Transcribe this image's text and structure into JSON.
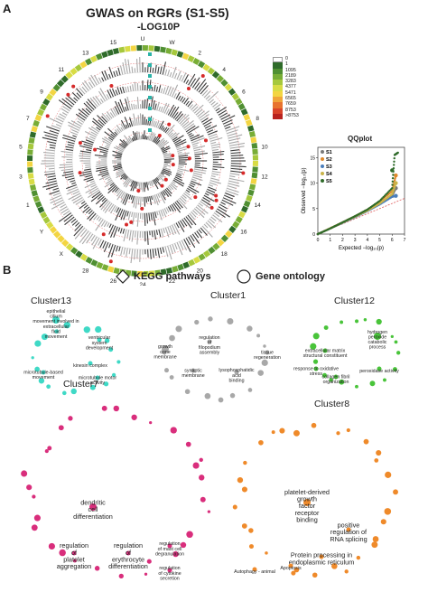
{
  "panelA": {
    "letter": "A",
    "title": "GWAS on RGRs (S1-S5)",
    "subtitle": "-LOG10P",
    "colorbar": {
      "labels": [
        "0",
        "1",
        "1095",
        "2189",
        "3283",
        "4377",
        "5471",
        "6565",
        "7659",
        "8753",
        ">8753"
      ],
      "colors": [
        "#ffffff",
        "#2f6b2a",
        "#4f8f32",
        "#78ad36",
        "#a6c83c",
        "#d8dc45",
        "#f3d542",
        "#f0a53a",
        "#e8732f",
        "#d9442a",
        "#b8231f"
      ]
    },
    "ideogram_labels": [
      "U",
      "W",
      "2",
      "4",
      "6",
      "8",
      "10",
      "12",
      "14",
      "16",
      "18",
      "20",
      "22",
      "24",
      "26",
      "28",
      "X",
      "Y",
      "1",
      "3",
      "5",
      "7",
      "9",
      "11",
      "13",
      "15"
    ],
    "qqplot": {
      "title": "QQplot",
      "xlabel": "Expected −log₁₀(p)",
      "ylabel": "Observed −log₁₀(p)",
      "legend": [
        {
          "name": "S1",
          "color": "#7a7a7a"
        },
        {
          "name": "S2",
          "color": "#e08a2c"
        },
        {
          "name": "S3",
          "color": "#4a7ebb"
        },
        {
          "name": "S4",
          "color": "#c9b44a"
        },
        {
          "name": "S5",
          "color": "#2f6b2a"
        }
      ]
    }
  },
  "chart_data": {
    "type": "scatter",
    "title": "QQplot",
    "xlabel": "Expected −log₁₀(p)",
    "ylabel": "Observed −log₁₀(p)",
    "xlim": [
      0,
      7
    ],
    "ylim": [
      0,
      17
    ],
    "xticks": [
      0,
      1,
      2,
      3,
      4,
      5,
      6,
      7
    ],
    "yticks": [
      0,
      5,
      10,
      15
    ],
    "series": [
      {
        "name": "S1",
        "color": "#7a7a7a",
        "x": [
          0,
          1,
          2,
          3,
          4,
          5,
          6,
          6.3
        ],
        "y": [
          0,
          1.1,
          2.2,
          3.4,
          4.6,
          6,
          7.5,
          9
        ]
      },
      {
        "name": "S2",
        "color": "#e08a2c",
        "x": [
          0,
          1,
          2,
          3,
          4,
          5,
          6,
          6.3
        ],
        "y": [
          0,
          1.15,
          2.3,
          3.5,
          4.8,
          6.4,
          8.4,
          11.5
        ]
      },
      {
        "name": "S3",
        "color": "#4a7ebb",
        "x": [
          0,
          1,
          2,
          3,
          4,
          5,
          6,
          6.3
        ],
        "y": [
          0,
          1.1,
          2.2,
          3.3,
          4.5,
          5.8,
          7.3,
          7.5
        ]
      },
      {
        "name": "S4",
        "color": "#c9b44a",
        "x": [
          0,
          1,
          2,
          3,
          4,
          5,
          6,
          6.3
        ],
        "y": [
          0,
          1.1,
          2.25,
          3.4,
          4.6,
          6,
          7.8,
          10
        ]
      },
      {
        "name": "S5",
        "color": "#2f6b2a",
        "x": [
          0,
          1,
          2,
          3,
          4,
          5,
          6,
          6.2,
          6.5,
          6.0
        ],
        "y": [
          0,
          1.1,
          2.3,
          3.5,
          4.8,
          6.5,
          9,
          15.5,
          16,
          12.5
        ]
      }
    ],
    "reference_line": {
      "x": [
        0,
        7
      ],
      "y": [
        0,
        7
      ]
    }
  },
  "panelB": {
    "letter": "B",
    "legend": {
      "kegg": "KEGG pathways",
      "go": "Gene ontology"
    },
    "clusters": [
      {
        "name": "Cluster13",
        "color": "#3fd9c6",
        "labels": [
          "epithelial\ncilium\nmovement involved in\nextracellular\nfluid\nmovement",
          "ventricular\nsystem\ndevelopment",
          "kinesin complex",
          "microtubule-based\nmovement",
          "microtubule motor\nactivity"
        ]
      },
      {
        "name": "Cluster1",
        "color": "#a8a8a8",
        "labels": [
          "growth\ncone\nmembrane",
          "regulation\nof\nfilopodium\nassembly",
          "tissue\nregeneration",
          "synaptic\nmembrane",
          "lysophosphatidic\nacid\nbinding"
        ]
      },
      {
        "name": "Cluster12",
        "color": "#49c43a",
        "labels": [
          "hydrogen\nperoxide\ncatabolic\nprocess",
          "extracellular matrix\nstructural constituent",
          "response to oxidative\nstress",
          "peroxidase activity",
          "collagen fibril\norganization"
        ]
      },
      {
        "name": "Cluster7",
        "color": "#d92e7c",
        "labels": [
          "dendritic\ncell\ndifferentiation",
          "regulation\nof\nplatelet\naggregation",
          "regulation\nof\nerythrocyte\ndifferentiation",
          "regulation\nof mast cell\ndegranulation",
          "regulation\nof cytokine\nsecretion"
        ]
      },
      {
        "name": "Cluster8",
        "color": "#ef8a2a",
        "labels": [
          "platelet-derived\ngrowth\nfactor\nreceptor\nbinding",
          "positive\nregulation of\nRNA splicing",
          "Protein processing in\nendoplasmic reticulum",
          "Autophagy - animal",
          "Apoptosis"
        ]
      }
    ]
  }
}
